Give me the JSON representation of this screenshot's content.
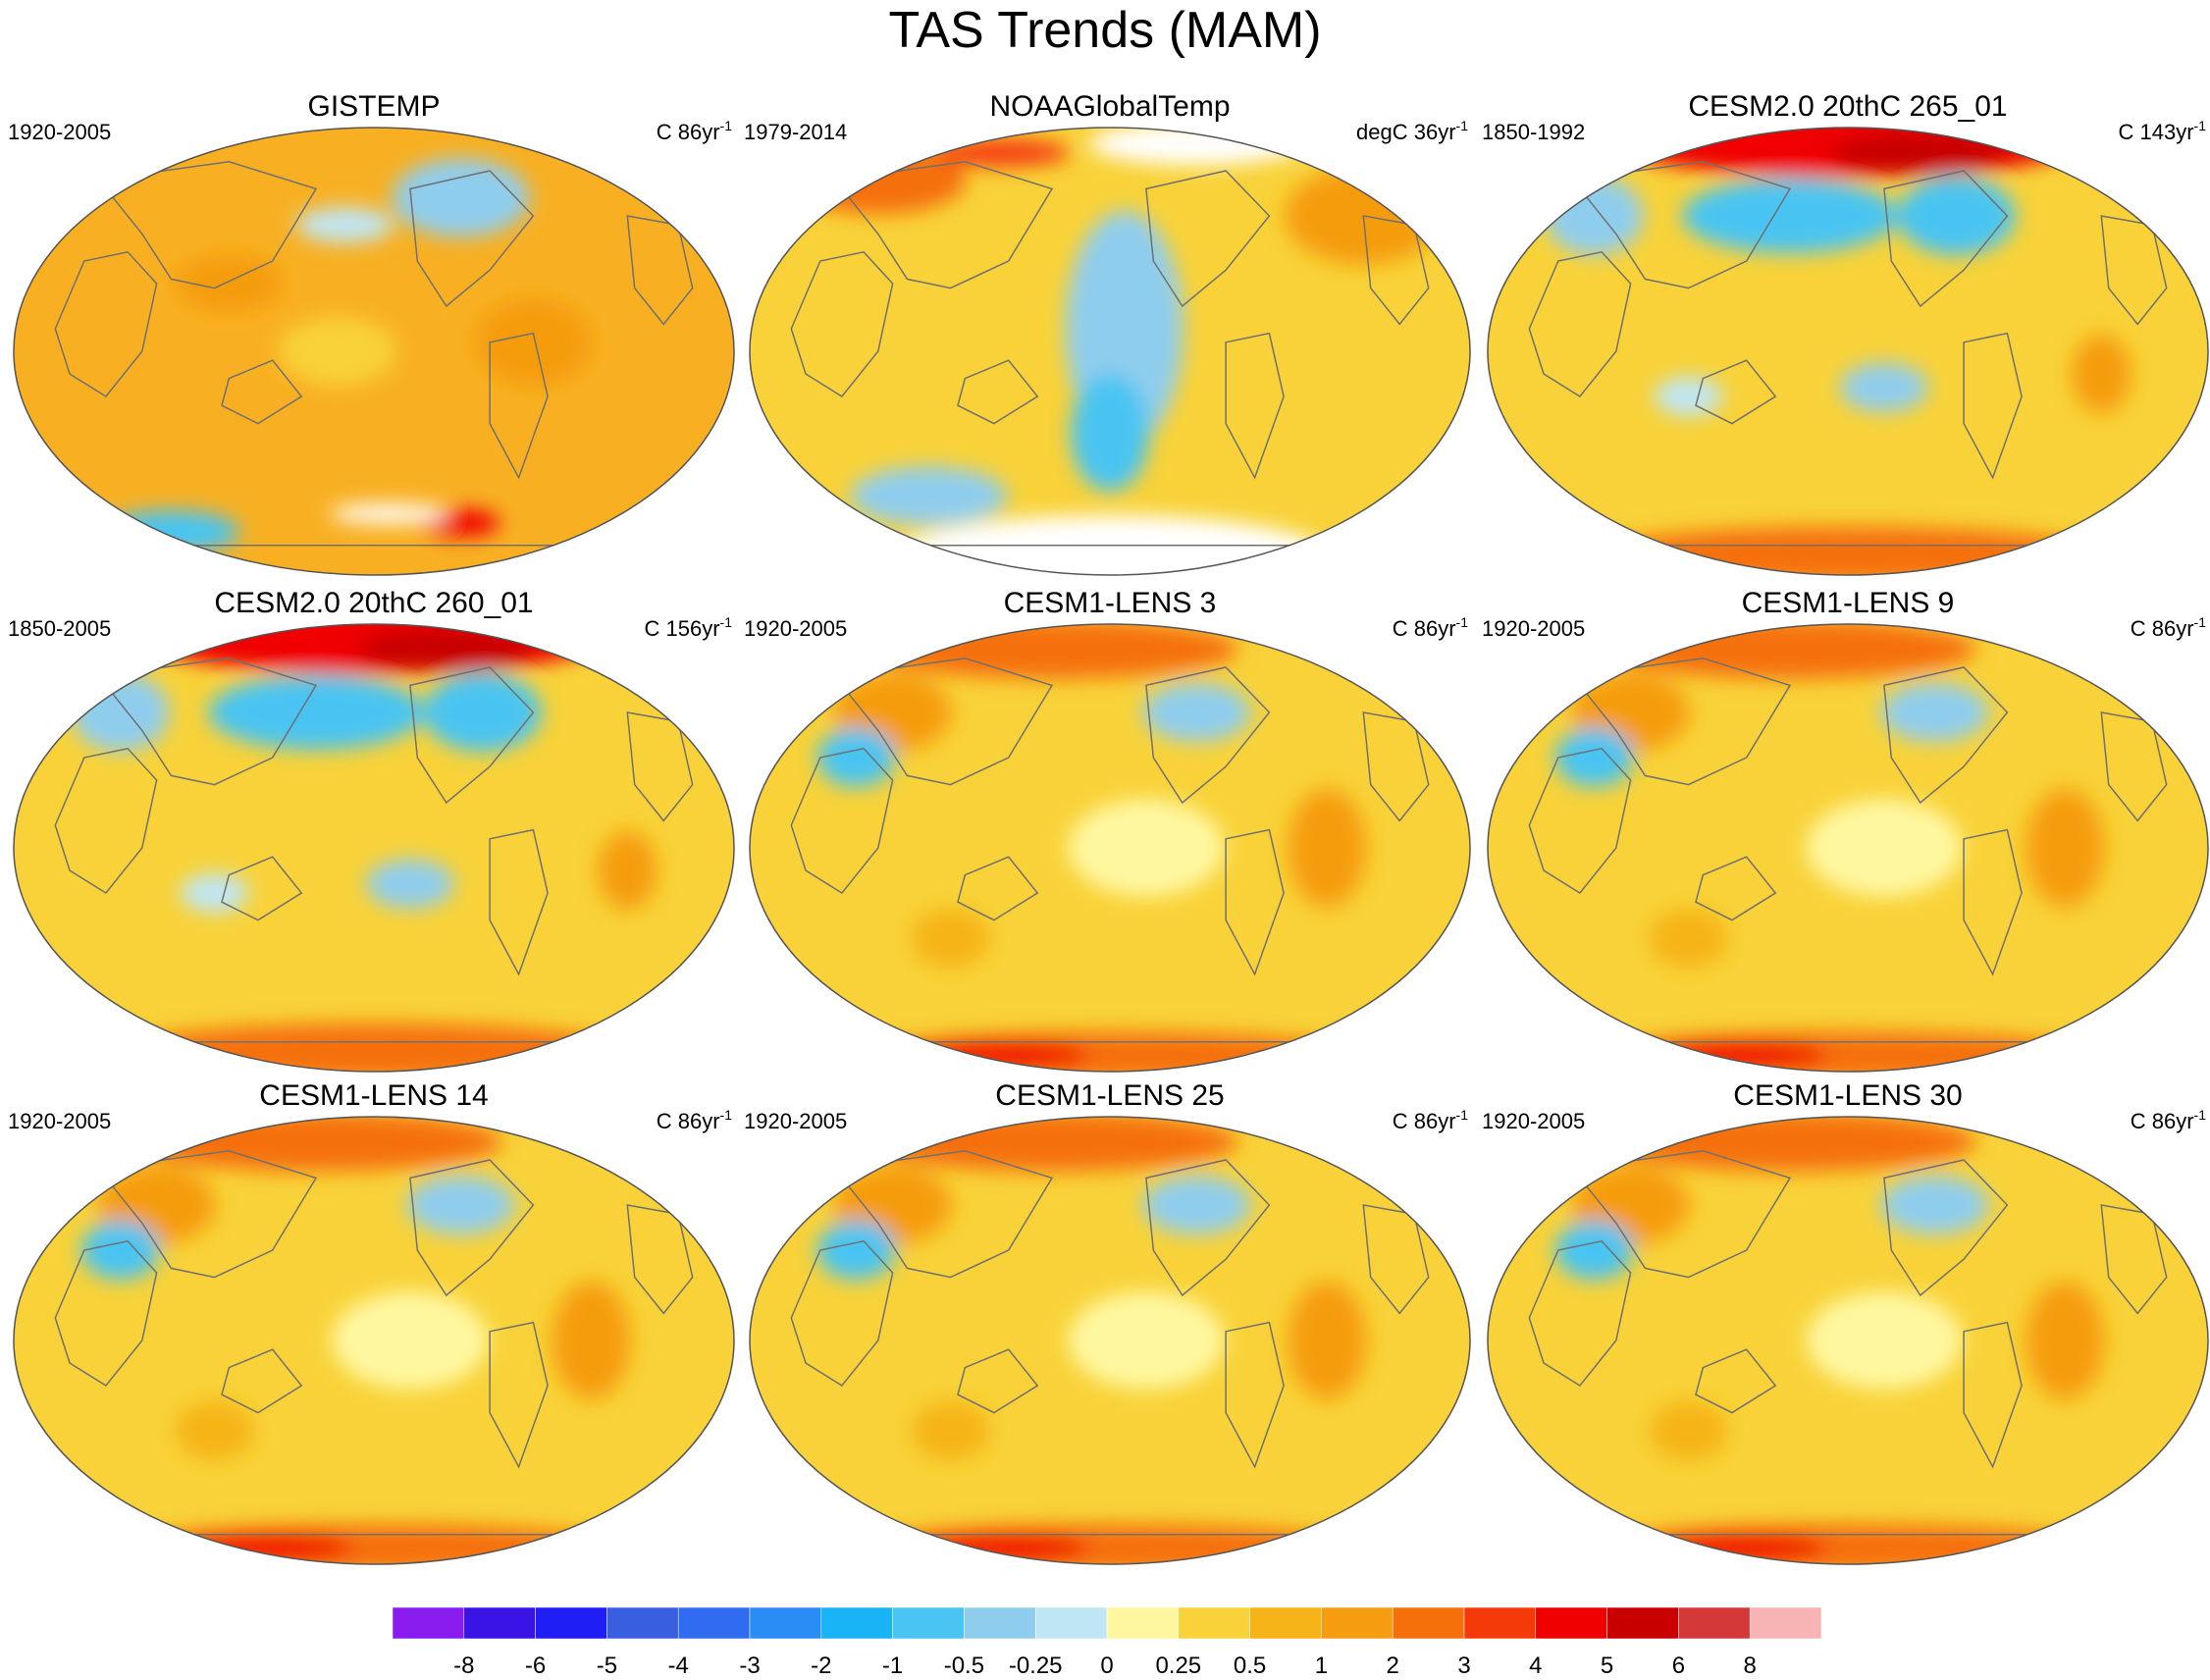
{
  "title": "TAS Trends (MAM)",
  "panels": [
    {
      "title": "GISTEMP",
      "period": "1920-2005",
      "units_prefix": "C 86yr",
      "units_sup": "-1",
      "palette": "obs_a"
    },
    {
      "title": "NOAAGlobalTemp",
      "period": "1979-2014",
      "units_prefix": "degC 36yr",
      "units_sup": "-1",
      "palette": "obs_b"
    },
    {
      "title": "CESM2.0 20thC 265_01",
      "period": "1850-1992",
      "units_prefix": "C 143yr",
      "units_sup": "-1",
      "palette": "cesm2"
    },
    {
      "title": "CESM2.0 20thC 260_01",
      "period": "1850-2005",
      "units_prefix": "C 156yr",
      "units_sup": "-1",
      "palette": "cesm2"
    },
    {
      "title": "CESM1-LENS 3",
      "period": "1920-2005",
      "units_prefix": "C 86yr",
      "units_sup": "-1",
      "palette": "lens"
    },
    {
      "title": "CESM1-LENS 9",
      "period": "1920-2005",
      "units_prefix": "C 86yr",
      "units_sup": "-1",
      "palette": "lens"
    },
    {
      "title": "CESM1-LENS 14",
      "period": "1920-2005",
      "units_prefix": "C 86yr",
      "units_sup": "-1",
      "palette": "lens"
    },
    {
      "title": "CESM1-LENS 25",
      "period": "1920-2005",
      "units_prefix": "C 86yr",
      "units_sup": "-1",
      "palette": "lens"
    },
    {
      "title": "CESM1-LENS 30",
      "period": "1920-2005",
      "units_prefix": "C 86yr",
      "units_sup": "-1",
      "palette": "lens"
    }
  ],
  "colorbar": {
    "labels": [
      "-8",
      "-6",
      "-5",
      "-4",
      "-3",
      "-2",
      "-1",
      "-0.5",
      "-0.25",
      "0",
      "0.25",
      "0.5",
      "1",
      "2",
      "3",
      "4",
      "5",
      "6",
      "8"
    ],
    "colors": [
      "#8a1cf0",
      "#3a14e6",
      "#1e1ef5",
      "#3a5ee0",
      "#2f6cf0",
      "#2a8cf5",
      "#18b4f5",
      "#4ac4f2",
      "#8fcdee",
      "#bfe6f5",
      "#fff7a0",
      "#f8d238",
      "#f6b418",
      "#f59c10",
      "#f5700a",
      "#f53a0a",
      "#f00000",
      "#c80000",
      "#d43838",
      "#f8b4b4"
    ]
  }
}
